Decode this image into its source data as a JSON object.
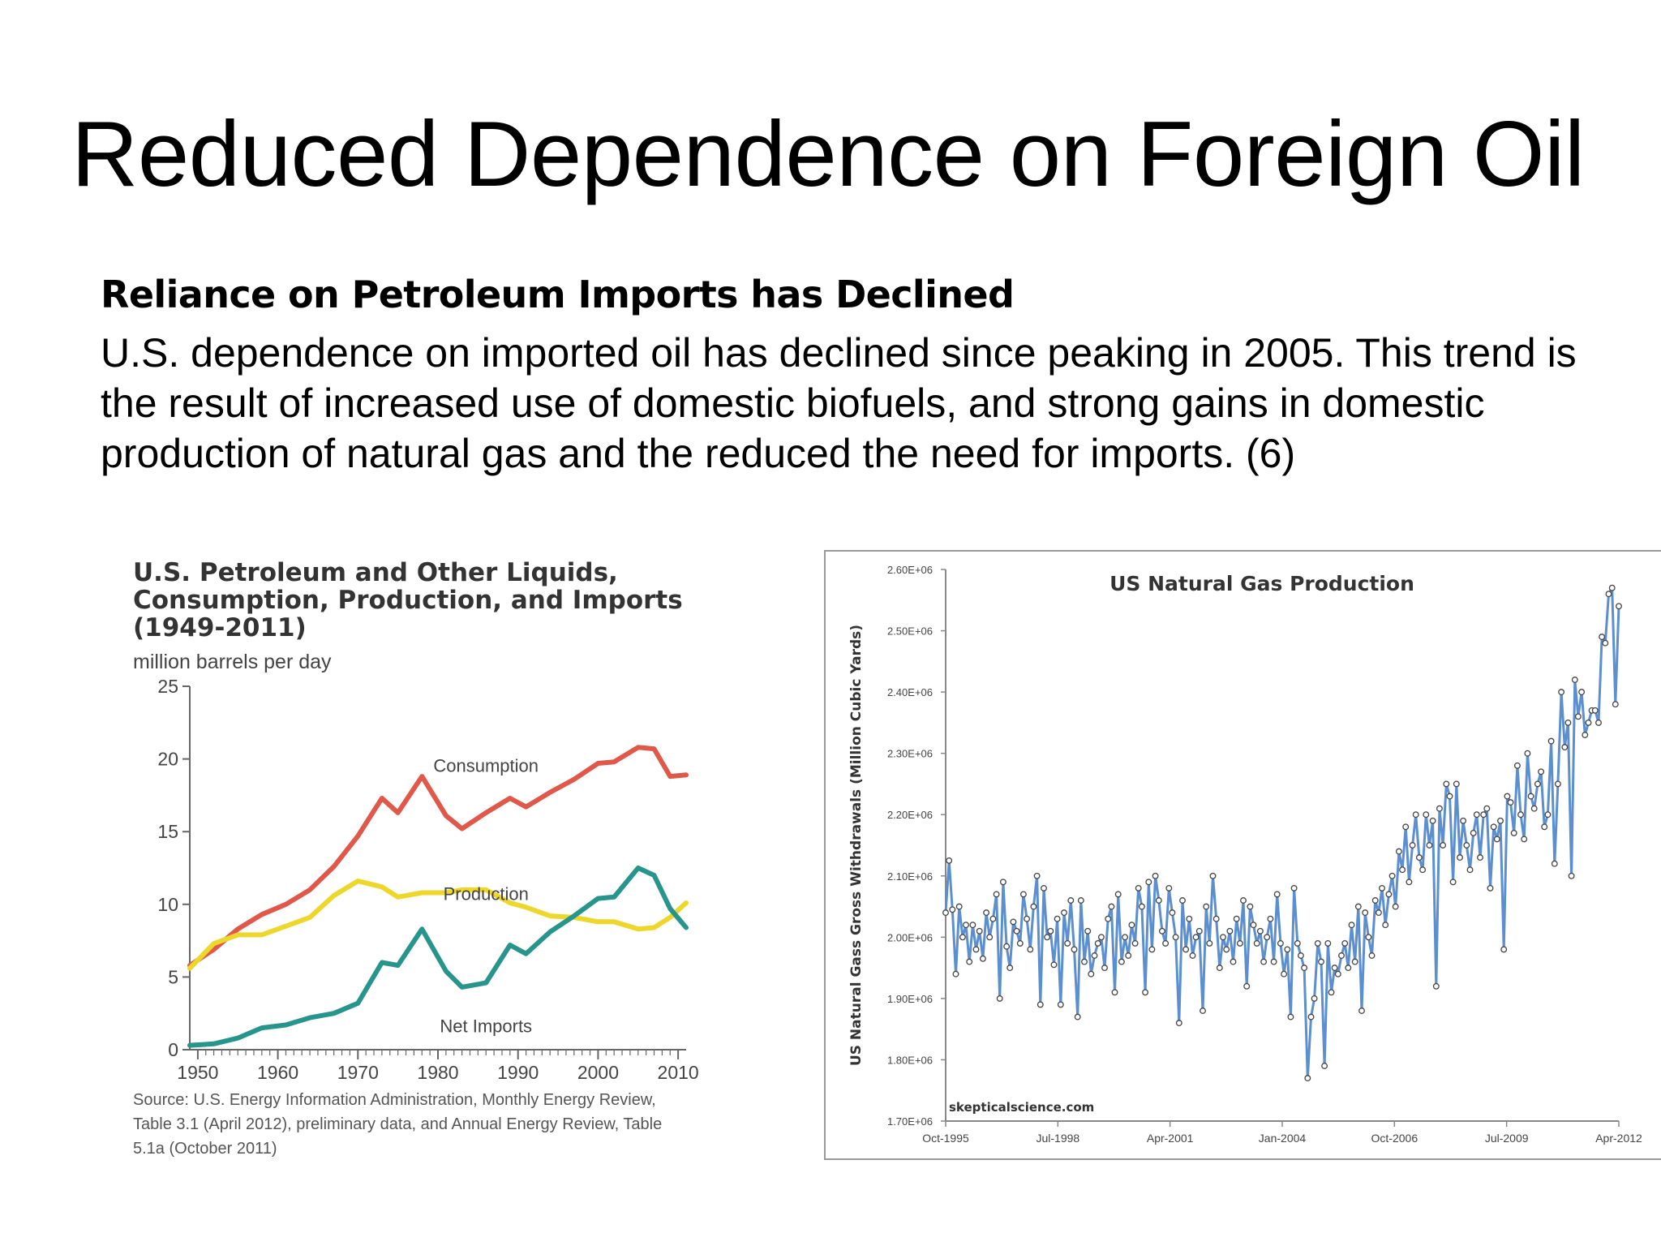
{
  "slide": {
    "title": "Reduced Dependence on Foreign Oil",
    "subheading": "Reliance on Petroleum Imports has Declined",
    "body_lines": [
      "U.S. dependence on imported oil has declined since peaking in 2005. This trend is",
      "the result of increased use of domestic biofuels, and strong gains in domestic",
      "production of natural gas and the reduced the need for imports. (6)"
    ]
  },
  "chart_data": [
    {
      "type": "line",
      "title_lines": [
        "U.S. Petroleum and Other Liquids,",
        "Consumption, Production, and Imports",
        "(1949-2011)"
      ],
      "ylabel": "million barrels per day",
      "ylim": [
        0,
        25
      ],
      "yticks": [
        0,
        5,
        10,
        15,
        20,
        25
      ],
      "xlim": [
        1949,
        2011
      ],
      "xticks": [
        1950,
        1960,
        1970,
        1980,
        1990,
        2000,
        2010
      ],
      "grid": false,
      "source_lines": [
        "Source: U.S. Energy Information Administration, Monthly Energy Review,",
        "Table 3.1 (April 2012), preliminary data, and Annual Energy Review, Table",
        "5.1a (October 2011)"
      ],
      "x": [
        1949,
        1952,
        1955,
        1958,
        1961,
        1964,
        1967,
        1970,
        1973,
        1975,
        1978,
        1981,
        1983,
        1986,
        1989,
        1991,
        1994,
        1997,
        2000,
        2002,
        2005,
        2007,
        2009,
        2011
      ],
      "series": [
        {
          "name": "Consumption",
          "color": "#e0584a",
          "values": [
            5.8,
            6.9,
            8.3,
            9.3,
            10.0,
            11.0,
            12.6,
            14.7,
            17.3,
            16.3,
            18.8,
            16.1,
            15.2,
            16.3,
            17.3,
            16.7,
            17.7,
            18.6,
            19.7,
            19.8,
            20.8,
            20.7,
            18.8,
            18.9
          ]
        },
        {
          "name": "Production",
          "color": "#ecd72a",
          "values": [
            5.6,
            7.3,
            7.9,
            7.9,
            8.5,
            9.1,
            10.6,
            11.6,
            11.2,
            10.5,
            10.8,
            10.8,
            11.0,
            11.0,
            10.1,
            9.8,
            9.2,
            9.1,
            8.8,
            8.8,
            8.3,
            8.4,
            9.1,
            10.1
          ]
        },
        {
          "name": "Net Imports",
          "color": "#27958c",
          "values": [
            0.3,
            0.4,
            0.8,
            1.5,
            1.7,
            2.2,
            2.5,
            3.2,
            6.0,
            5.8,
            8.3,
            5.4,
            4.3,
            4.6,
            7.2,
            6.6,
            8.1,
            9.2,
            10.4,
            10.5,
            12.5,
            12.0,
            9.7,
            8.4
          ]
        }
      ]
    },
    {
      "type": "line",
      "title": "US Natural Gas Production",
      "ylabel": "US Natural Gass Gross Withdrawals (Million Cubic Yards)",
      "ylim": [
        1700000,
        2600000
      ],
      "yticks": [
        "1.70E+06",
        "1.80E+06",
        "1.90E+06",
        "2.00E+06",
        "2.10E+06",
        "2.20E+06",
        "2.30E+06",
        "2.40E+06",
        "2.50E+06",
        "2.60E+06"
      ],
      "xticks": [
        "Oct-1995",
        "Jul-1998",
        "Apr-2001",
        "Jan-2004",
        "Oct-2006",
        "Jul-2009",
        "Apr-2012"
      ],
      "x_start": "Oct-1995",
      "x_end": "Apr-2012",
      "grid": false,
      "color": "#5b8fd0",
      "watermark": "skepticalscience.com",
      "values": [
        2040000,
        2125000,
        2045000,
        1940000,
        2050000,
        2000000,
        2020000,
        1960000,
        2020000,
        1980000,
        2010000,
        1965000,
        2040000,
        2000000,
        2030000,
        2070000,
        1900000,
        2090000,
        1985000,
        1950000,
        2025000,
        2010000,
        1990000,
        2070000,
        2030000,
        1980000,
        2050000,
        2100000,
        1890000,
        2080000,
        2000000,
        2010000,
        1955000,
        2030000,
        1890000,
        2040000,
        1990000,
        2060000,
        1980000,
        1870000,
        2060000,
        1960000,
        2010000,
        1940000,
        1970000,
        1990000,
        2000000,
        1950000,
        2030000,
        2050000,
        1910000,
        2070000,
        1960000,
        2000000,
        1970000,
        2020000,
        1990000,
        2080000,
        2050000,
        1910000,
        2090000,
        1980000,
        2100000,
        2060000,
        2010000,
        1990000,
        2080000,
        2040000,
        2000000,
        1860000,
        2060000,
        1980000,
        2030000,
        1970000,
        2000000,
        2010000,
        1880000,
        2050000,
        1990000,
        2100000,
        2030000,
        1950000,
        2000000,
        1980000,
        2010000,
        1960000,
        2030000,
        1990000,
        2060000,
        1920000,
        2050000,
        2020000,
        1990000,
        2010000,
        1960000,
        2000000,
        2030000,
        1960000,
        2070000,
        1990000,
        1940000,
        1980000,
        1870000,
        2080000,
        1990000,
        1970000,
        1950000,
        1770000,
        1870000,
        1900000,
        1990000,
        1960000,
        1790000,
        1990000,
        1910000,
        1950000,
        1940000,
        1970000,
        1990000,
        1950000,
        2020000,
        1960000,
        2050000,
        1880000,
        2040000,
        2000000,
        1970000,
        2060000,
        2040000,
        2080000,
        2020000,
        2070000,
        2100000,
        2050000,
        2140000,
        2110000,
        2180000,
        2090000,
        2150000,
        2200000,
        2130000,
        2110000,
        2200000,
        2150000,
        2190000,
        1920000,
        2210000,
        2150000,
        2250000,
        2230000,
        2090000,
        2250000,
        2130000,
        2190000,
        2150000,
        2110000,
        2170000,
        2200000,
        2130000,
        2200000,
        2210000,
        2080000,
        2180000,
        2160000,
        2190000,
        1980000,
        2230000,
        2220000,
        2170000,
        2280000,
        2200000,
        2160000,
        2300000,
        2230000,
        2210000,
        2250000,
        2270000,
        2180000,
        2200000,
        2320000,
        2120000,
        2250000,
        2400000,
        2310000,
        2350000,
        2100000,
        2420000,
        2360000,
        2400000,
        2330000,
        2350000,
        2370000,
        2370000,
        2350000,
        2490000,
        2480000,
        2560000,
        2570000,
        2380000,
        2540000
      ]
    }
  ]
}
